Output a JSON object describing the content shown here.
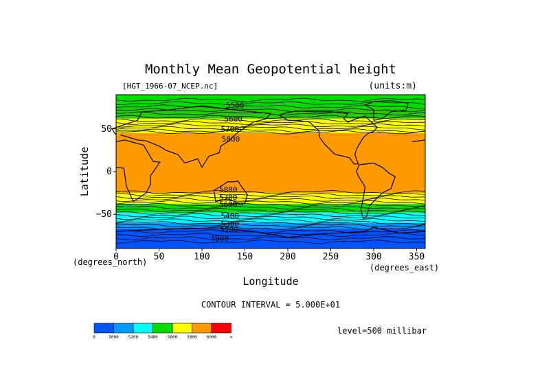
{
  "chart_data": {
    "type": "heatmap",
    "title": "Monthly Mean Geopotential height",
    "file_label": "[HGT_1966-07_NCEP.nc]",
    "units_label": "(units:m)",
    "xlabel": "Longitude",
    "ylabel": "Latitude",
    "x_unit_label": "(degrees_east)",
    "y_unit_label": "(degrees_north)",
    "xlim": [
      0,
      360
    ],
    "ylim": [
      -90,
      90
    ],
    "x_ticks": [
      0,
      50,
      100,
      150,
      200,
      250,
      300,
      350
    ],
    "y_ticks": [
      50,
      0,
      -50
    ],
    "y_tick_labels": [
      "50",
      "0",
      "−50"
    ],
    "contour_interval_text": "CONTOUR INTERVAL = 5.000E+01",
    "level_text": "level=500 millibar",
    "contour_labels": [
      {
        "text": "5500",
        "lon": 128,
        "lat": 78
      },
      {
        "text": "5600",
        "lon": 126,
        "lat": 62
      },
      {
        "text": "5700",
        "lon": 122,
        "lat": 50
      },
      {
        "text": "5800",
        "lon": 123,
        "lat": 38
      },
      {
        "text": "5800",
        "lon": 120,
        "lat": -21
      },
      {
        "text": "5700",
        "lon": 120,
        "lat": -30
      },
      {
        "text": "5600",
        "lon": 120,
        "lat": -38
      },
      {
        "text": "5400",
        "lon": 122,
        "lat": -52
      },
      {
        "text": "5300",
        "lon": 122,
        "lat": -61
      },
      {
        "text": "5200",
        "lon": 121,
        "lat": -68
      },
      {
        "text": "4900",
        "lon": 110,
        "lat": -78
      }
    ],
    "bands": [
      {
        "lat_top": 90,
        "lat_bottom": 74,
        "color": "#00dd00"
      },
      {
        "lat_top": 74,
        "lat_bottom": 62,
        "color": "#22cc00"
      },
      {
        "lat_top": 62,
        "lat_bottom": 45,
        "color": "#ffff00"
      },
      {
        "lat_top": 45,
        "lat_bottom": -25,
        "color": "#ff9900"
      },
      {
        "lat_top": -25,
        "lat_bottom": -38,
        "color": "#ffff00"
      },
      {
        "lat_top": -38,
        "lat_bottom": -48,
        "color": "#00dd00"
      },
      {
        "lat_top": -48,
        "lat_bottom": -60,
        "color": "#00ffff"
      },
      {
        "lat_top": -60,
        "lat_bottom": -67,
        "color": "#0099ff"
      },
      {
        "lat_top": -67,
        "lat_bottom": -90,
        "color": "#0055ff"
      }
    ],
    "contour_lats": [
      84,
      80,
      76,
      72,
      68,
      64,
      60,
      57,
      54,
      51,
      48,
      46,
      -24,
      -27,
      -30,
      -33,
      -36,
      -39,
      -42,
      -45,
      -48,
      -51,
      -54,
      -57,
      -60,
      -63,
      -66,
      -70,
      -74,
      -78,
      -82
    ]
  },
  "colorbar": {
    "colors": [
      "#0055ff",
      "#0099ff",
      "#00ffff",
      "#00dd00",
      "#ffff00",
      "#ff9900",
      "#ff0000"
    ],
    "labels": [
      "0",
      "5000",
      "5200",
      "5400",
      "5600",
      "5800",
      "6000",
      "∞"
    ]
  }
}
